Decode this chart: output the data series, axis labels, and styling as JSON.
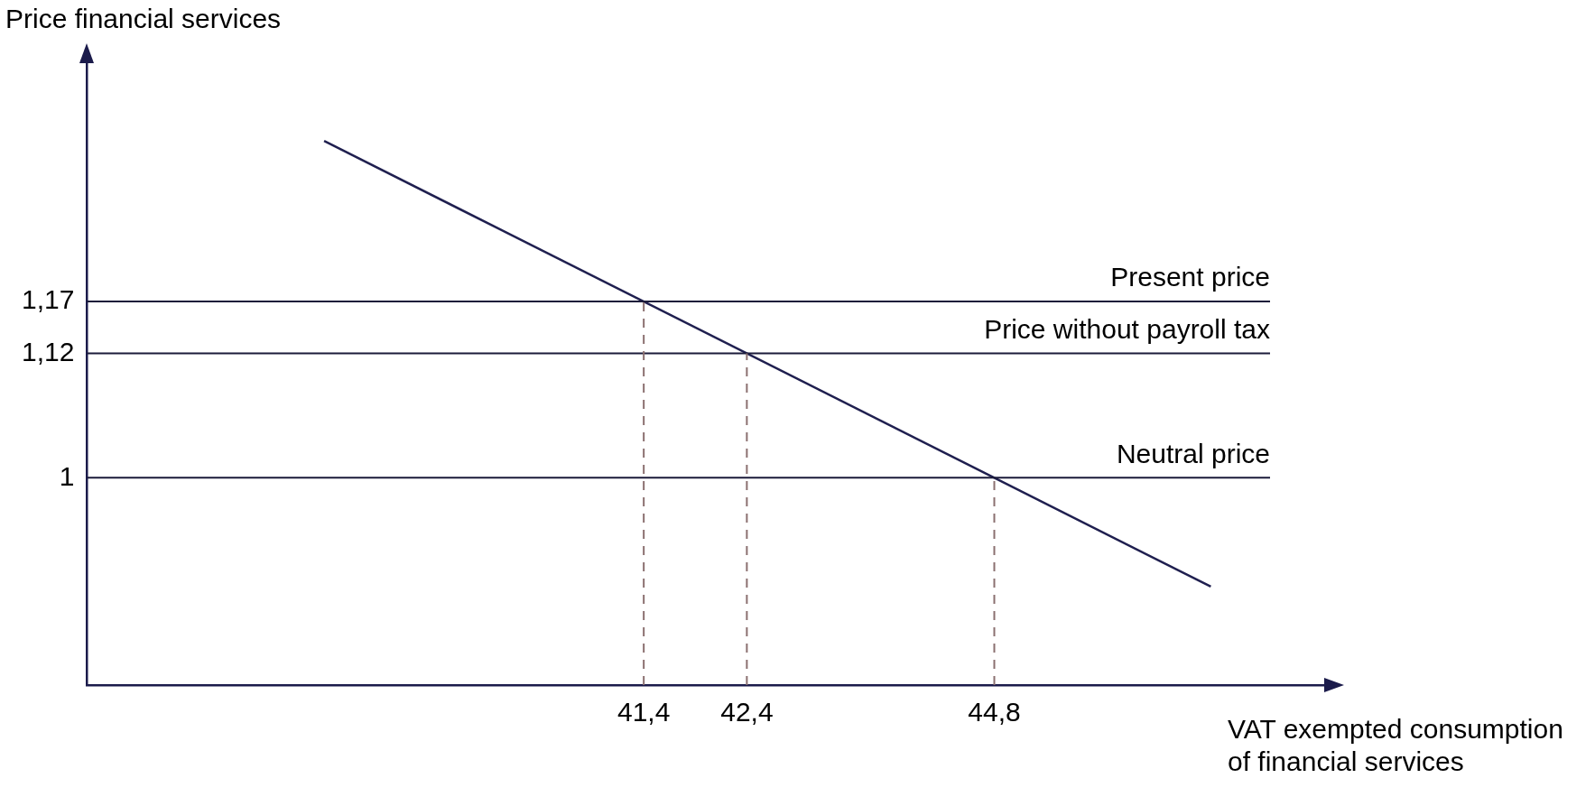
{
  "chart_data": {
    "type": "line",
    "xlabel": "VAT exempted consumption of financial services",
    "ylabel": "Price financial services",
    "x": [
      38.3,
      46.9
    ],
    "series": [
      {
        "color": "#1f1f4f",
        "values": [
          1.325,
          0.895
        ]
      }
    ],
    "xlim": [
      36,
      48
    ],
    "ylim": [
      0.8,
      1.4
    ],
    "xticks": [
      {
        "value": 41.4,
        "label": "41,4"
      },
      {
        "value": 42.4,
        "label": "42,4"
      },
      {
        "value": 44.8,
        "label": "44,8"
      }
    ],
    "yticks": [
      1,
      {
        "value": 1.12,
        "label": "1,12"
      },
      {
        "value": 1.17,
        "label": "1,17"
      }
    ],
    "ref_lines": [
      {
        "axis": "y",
        "value": 1.17,
        "label": "Present price",
        "color": "#1b1b3a",
        "line_style": "solid"
      },
      {
        "axis": "y",
        "value": 1.12,
        "label": "Price without payroll tax",
        "color": "#1b1b3a",
        "line_style": "solid"
      },
      {
        "axis": "y",
        "value": 1,
        "label": "Neutral price",
        "color": "#1b1b3a",
        "line_style": "solid"
      },
      {
        "axis": "x",
        "value": 41.4,
        "color": "#8b7070",
        "line_style": "dashed"
      },
      {
        "axis": "x",
        "value": 42.4,
        "color": "#8b7070",
        "line_style": "dashed"
      },
      {
        "axis": "x",
        "value": 44.8,
        "color": "#8b7070",
        "line_style": "dashed"
      }
    ],
    "grid": false,
    "legend": false,
    "marker": "none",
    "line_style": "solid"
  }
}
